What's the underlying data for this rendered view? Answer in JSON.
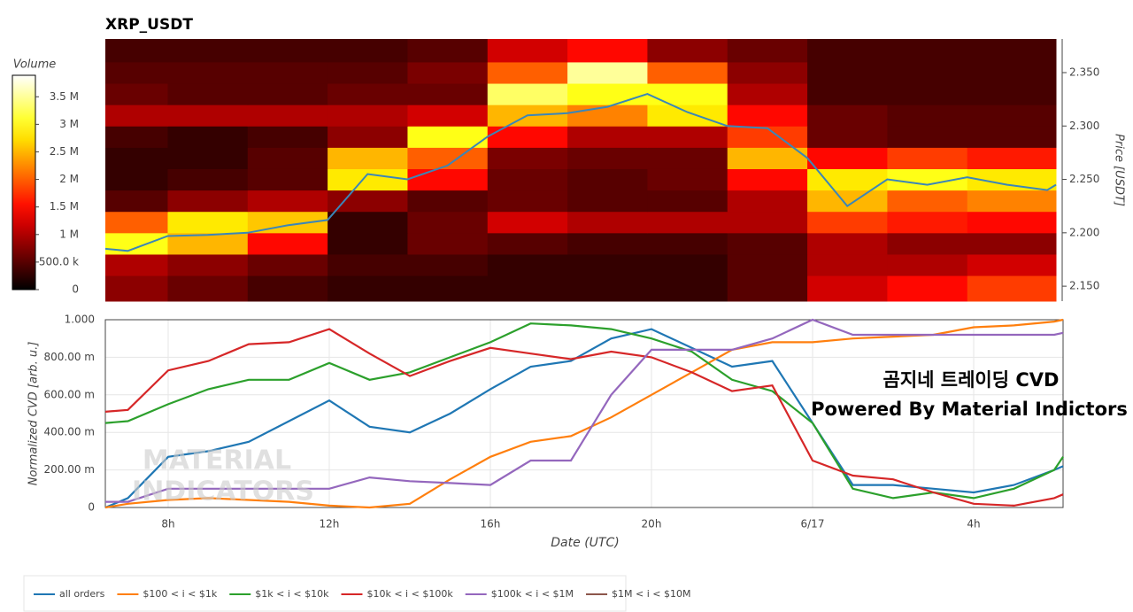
{
  "chart_data": [
    {
      "type": "heatmap",
      "title": "XRP_USDT",
      "x_bins": [
        6.44,
        8,
        10,
        12,
        14,
        16,
        18,
        20,
        22,
        24,
        26,
        28,
        30.22
      ],
      "y_bins": [
        2.136,
        2.16,
        2.18,
        2.2,
        2.22,
        2.24,
        2.26,
        2.28,
        2.3,
        2.32,
        2.34,
        2.36,
        2.3815
      ],
      "z": [
        [
          800000,
          600000,
          400000,
          300000,
          300000,
          300000,
          300000,
          300000,
          500000,
          1200000,
          1500000,
          1800000
        ],
        [
          1000000,
          800000,
          600000,
          400000,
          400000,
          300000,
          300000,
          300000,
          500000,
          1000000,
          1000000,
          1200000
        ],
        [
          3000000,
          2500000,
          1500000,
          300000,
          600000,
          500000,
          400000,
          400000,
          500000,
          1000000,
          800000,
          800000
        ],
        [
          2000000,
          2800000,
          2600000,
          300000,
          600000,
          1200000,
          1000000,
          1000000,
          1000000,
          1800000,
          1600000,
          1500000
        ],
        [
          500000,
          800000,
          1000000,
          800000,
          500000,
          600000,
          500000,
          500000,
          1000000,
          2500000,
          2000000,
          2200000
        ],
        [
          300000,
          400000,
          500000,
          2800000,
          1500000,
          600000,
          500000,
          600000,
          1500000,
          2800000,
          3000000,
          2800000
        ],
        [
          300000,
          300000,
          500000,
          2500000,
          2000000,
          700000,
          600000,
          600000,
          2500000,
          1500000,
          1800000,
          1600000
        ],
        [
          400000,
          300000,
          400000,
          800000,
          3000000,
          1500000,
          1000000,
          1000000,
          1800000,
          600000,
          500000,
          500000
        ],
        [
          1000000,
          1000000,
          1000000,
          1000000,
          1200000,
          2500000,
          2200000,
          2800000,
          1500000,
          600000,
          500000,
          500000
        ],
        [
          600000,
          500000,
          500000,
          600000,
          600000,
          3300000,
          3000000,
          3000000,
          1000000,
          400000,
          400000,
          400000
        ],
        [
          500000,
          500000,
          500000,
          500000,
          700000,
          2000000,
          3500000,
          2000000,
          800000,
          400000,
          400000,
          400000
        ],
        [
          400000,
          400000,
          400000,
          400000,
          500000,
          1200000,
          1500000,
          800000,
          600000,
          400000,
          400000,
          400000
        ]
      ],
      "colorbar": {
        "title": "Volume",
        "lim": [
          0,
          3890000
        ],
        "ticks": [
          0,
          {
            "value": 500000,
            "label": "500.0 k"
          },
          {
            "value": 1000000,
            "label": "1 M"
          },
          {
            "value": 1500000,
            "label": "1.5 M"
          },
          {
            "value": 2000000,
            "label": "2 M"
          },
          {
            "value": 2500000,
            "label": "2.5 M"
          },
          {
            "value": 3000000,
            "label": "3 M"
          },
          {
            "value": 3500000,
            "label": "3.5 M"
          }
        ]
      },
      "ylabel": "Price [USDT]",
      "ylim": [
        2.136,
        2.3815
      ],
      "yticks": [
        {
          "value": 2.15,
          "label": "2.150"
        },
        {
          "value": 2.2,
          "label": "2.200"
        },
        {
          "value": 2.25,
          "label": "2.250"
        },
        {
          "value": 2.3,
          "label": "2.300"
        },
        {
          "value": 2.35,
          "label": "2.350"
        }
      ],
      "xlim": [
        6.44,
        30.22
      ],
      "price_line": {
        "color": "#3b86b8",
        "x": [
          6.44,
          7,
          8,
          9,
          10,
          11,
          12,
          13,
          14,
          15,
          16,
          17,
          18,
          19,
          20,
          21,
          22,
          23,
          24,
          25,
          26,
          27,
          28,
          29,
          30,
          30.22
        ],
        "values": [
          2.185,
          2.183,
          2.197,
          2.198,
          2.2,
          2.207,
          2.212,
          2.255,
          2.25,
          2.263,
          2.29,
          2.31,
          2.312,
          2.318,
          2.33,
          2.313,
          2.3,
          2.298,
          2.27,
          2.225,
          2.25,
          2.245,
          2.252,
          2.245,
          2.24,
          2.245
        ]
      }
    },
    {
      "type": "line",
      "xlabel": "Date (UTC)",
      "ylabel": "Normalized CVD [arb. u.]",
      "xlim": [
        6.44,
        30.22
      ],
      "xticks": [
        {
          "value": 8,
          "label": "8h"
        },
        {
          "value": 12,
          "label": "12h"
        },
        {
          "value": 16,
          "label": "16h"
        },
        {
          "value": 20,
          "label": "20h"
        },
        {
          "value": 24,
          "label": "6/17"
        },
        {
          "value": 28,
          "label": "4h"
        }
      ],
      "ylim": [
        0,
        1
      ],
      "yticks": [
        0,
        {
          "value": 0.2,
          "label": "200.00 m"
        },
        {
          "value": 0.4,
          "label": "400.00 m"
        },
        {
          "value": 0.6,
          "label": "600.00 m"
        },
        {
          "value": 0.8,
          "label": "800.00 m"
        },
        {
          "value": 1,
          "label": "1.000"
        }
      ],
      "grid": true,
      "legend": "bottom",
      "x": [
        6.44,
        7,
        8,
        9,
        10,
        11,
        12,
        13,
        14,
        15,
        16,
        17,
        18,
        19,
        20,
        21,
        22,
        23,
        24,
        25,
        26,
        27,
        28,
        29,
        30,
        30.22
      ],
      "series": [
        {
          "name": "all orders",
          "color": "#1f77b4",
          "values": [
            0,
            0.05,
            0.27,
            0.3,
            0.35,
            0.46,
            0.57,
            0.43,
            0.4,
            0.5,
            0.63,
            0.75,
            0.78,
            0.9,
            0.95,
            0.85,
            0.75,
            0.78,
            0.45,
            0.12,
            0.12,
            0.1,
            0.08,
            0.12,
            0.2,
            0.22
          ]
        },
        {
          "name": "$100 < i < $1k",
          "color": "#ff7f0e",
          "values": [
            0,
            0.02,
            0.04,
            0.05,
            0.04,
            0.03,
            0.01,
            0,
            0.02,
            0.15,
            0.27,
            0.35,
            0.38,
            0.48,
            0.6,
            0.72,
            0.84,
            0.88,
            0.88,
            0.9,
            0.91,
            0.92,
            0.96,
            0.97,
            0.99,
            1
          ]
        },
        {
          "name": "$1k < i < $10k",
          "color": "#2ca02c",
          "values": [
            0.45,
            0.46,
            0.55,
            0.63,
            0.68,
            0.68,
            0.77,
            0.68,
            0.72,
            0.8,
            0.88,
            0.98,
            0.97,
            0.95,
            0.9,
            0.83,
            0.68,
            0.62,
            0.45,
            0.1,
            0.05,
            0.08,
            0.05,
            0.1,
            0.2,
            0.27
          ]
        },
        {
          "name": "$10k < i < $100k",
          "color": "#d62728",
          "values": [
            0.51,
            0.52,
            0.73,
            0.78,
            0.87,
            0.88,
            0.95,
            0.82,
            0.7,
            0.78,
            0.85,
            0.82,
            0.79,
            0.83,
            0.8,
            0.72,
            0.62,
            0.65,
            0.25,
            0.17,
            0.15,
            0.08,
            0.02,
            0.01,
            0.05,
            0.07
          ]
        },
        {
          "name": "$100k < i < $1M",
          "color": "#9467bd",
          "values": [
            0.03,
            0.03,
            0.1,
            0.1,
            0.1,
            0.1,
            0.1,
            0.16,
            0.14,
            0.13,
            0.12,
            0.25,
            0.25,
            0.6,
            0.84,
            0.84,
            0.84,
            0.9,
            1,
            0.92,
            0.92,
            0.92,
            0.92,
            0.92,
            0.92,
            0.93
          ]
        },
        {
          "name": "$1M < i < $10M",
          "color": "#8c564b",
          "values": [
            null,
            null,
            null,
            null,
            null,
            null,
            null,
            null,
            null,
            null,
            null,
            null,
            null,
            null,
            null,
            null,
            null,
            null,
            null,
            null,
            null,
            null,
            null,
            null,
            null,
            null
          ]
        }
      ],
      "annotations": [
        "곰지네 트레이딩 CVD",
        "Powered By Material Indictors"
      ],
      "watermark": [
        "MATERIAL",
        "INDICATORS"
      ]
    }
  ]
}
